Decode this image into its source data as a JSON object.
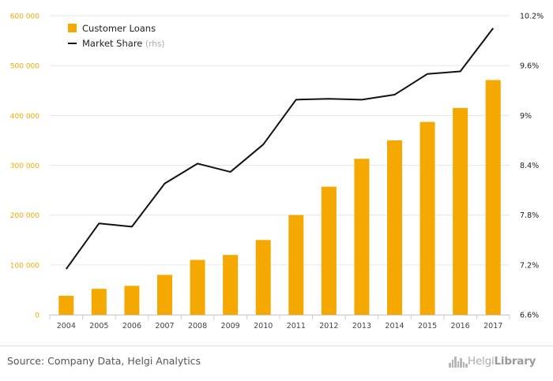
{
  "chart_data": {
    "type": "bar",
    "categories": [
      "2004",
      "2005",
      "2006",
      "2007",
      "2008",
      "2009",
      "2010",
      "2011",
      "2012",
      "2013",
      "2014",
      "2015",
      "2016",
      "2017"
    ],
    "series": [
      {
        "name": "Customer Loans",
        "type": "bar",
        "axis": "left",
        "color": "#f5a800",
        "values": [
          38000,
          52000,
          58000,
          80000,
          110000,
          120000,
          150000,
          200000,
          257000,
          313000,
          350000,
          387000,
          415000,
          471000
        ]
      },
      {
        "name": "Market Share",
        "name_suffix": "(rhs)",
        "type": "line",
        "axis": "right",
        "color": "#111111",
        "values": [
          7.15,
          7.7,
          7.66,
          8.18,
          8.42,
          8.32,
          8.65,
          9.19,
          9.2,
          9.19,
          9.25,
          9.5,
          9.53,
          10.05
        ]
      }
    ],
    "ylim_left": [
      0,
      600000
    ],
    "ylim_right": [
      6.6,
      10.2
    ],
    "left_ticks": [
      "0",
      "100 000",
      "200 000",
      "300 000",
      "400 000",
      "500 000",
      "600 000"
    ],
    "right_ticks": [
      "6.6%",
      "7.2%",
      "7.8%",
      "8.4%",
      "9%",
      "9.6%",
      "10.2%"
    ],
    "grid": true,
    "legend": "top-left"
  },
  "footer": {
    "source": "Source: Company Data, Helgi Analytics",
    "logo_light": "Helgi",
    "logo_bold": "Library"
  }
}
